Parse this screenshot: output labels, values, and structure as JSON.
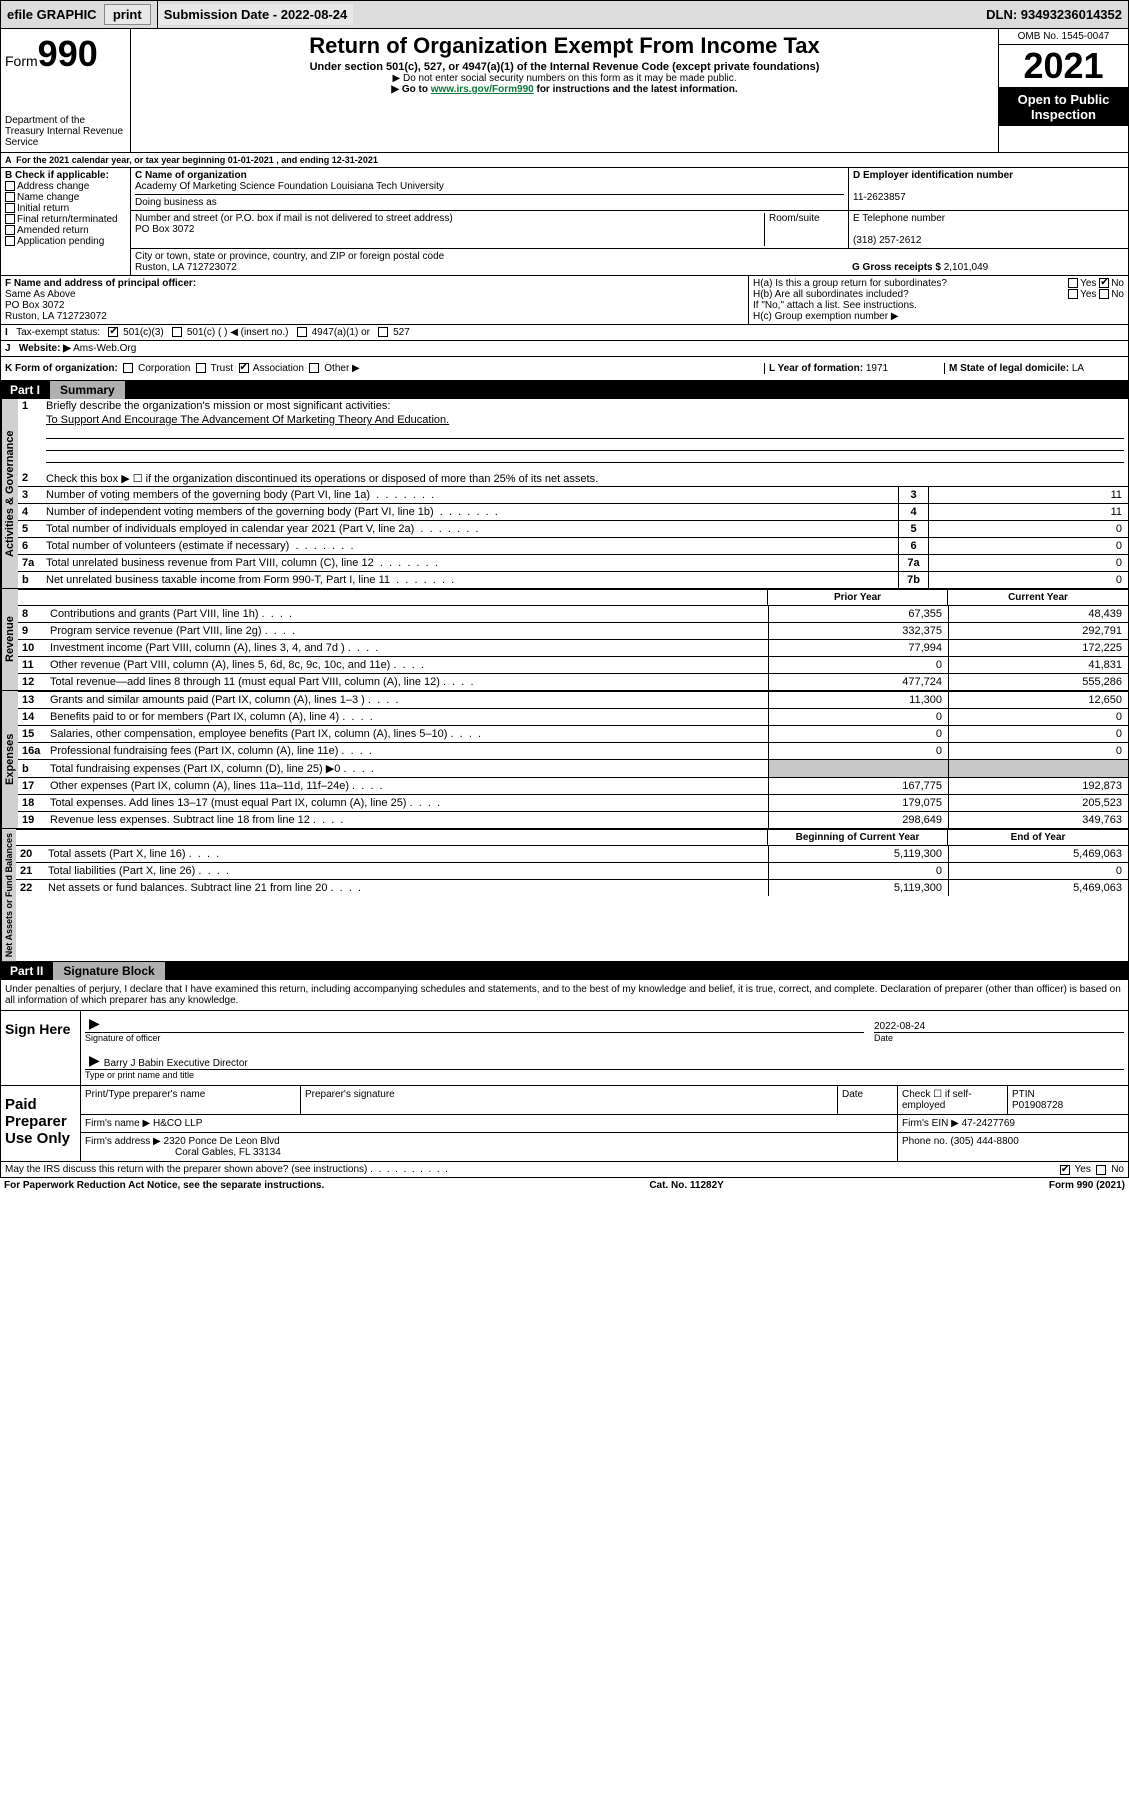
{
  "topbar": {
    "efile": "efile GRAPHIC",
    "print": "print",
    "subdate_lbl": "Submission Date - 2022-08-24",
    "dln": "DLN: 93493236014352"
  },
  "header": {
    "form_word": "Form",
    "form_num": "990",
    "title": "Return of Organization Exempt From Income Tax",
    "sub": "Under section 501(c), 527, or 4947(a)(1) of the Internal Revenue Code (except private foundations)",
    "note1": "▶ Do not enter social security numbers on this form as it may be made public.",
    "note2_pre": "▶ Go to ",
    "note2_link": "www.irs.gov/Form990",
    "note2_post": " for instructions and the latest information.",
    "dept": "Department of the Treasury Internal Revenue Service",
    "omb": "OMB No. 1545-0047",
    "year": "2021",
    "open": "Open to Public Inspection"
  },
  "A": {
    "text": "For the 2021 calendar year, or tax year beginning 01-01-2021    , and ending 12-31-2021"
  },
  "B": {
    "hdr": "B Check if applicable:",
    "items": [
      "Address change",
      "Name change",
      "Initial return",
      "Final return/terminated",
      "Amended return",
      "Application pending"
    ]
  },
  "C": {
    "name_lbl": "C Name of organization",
    "name": "Academy Of Marketing Science Foundation Louisiana Tech University",
    "dba_lbl": "Doing business as",
    "addr_lbl": "Number and street (or P.O. box if mail is not delivered to street address)",
    "room_lbl": "Room/suite",
    "addr": "PO Box 3072",
    "city_lbl": "City or town, state or province, country, and ZIP or foreign postal code",
    "city": "Ruston, LA  712723072"
  },
  "D": {
    "lbl": "D Employer identification number",
    "val": "11-2623857"
  },
  "E": {
    "lbl": "E Telephone number",
    "val": "(318) 257-2612"
  },
  "G": {
    "lbl": "G Gross receipts $",
    "val": "2,101,049"
  },
  "F": {
    "lbl": "F  Name and address of principal officer:",
    "l1": "Same As Above",
    "l2": "PO Box 3072",
    "l3": "Ruston, LA  712723072"
  },
  "H": {
    "a_lbl": "H(a)  Is this a group return for subordinates?",
    "b_lbl": "H(b)  Are all subordinates included?",
    "b_note": "If \"No,\" attach a list. See instructions.",
    "c_lbl": "H(c)  Group exemption number ▶"
  },
  "I": {
    "lbl": "Tax-exempt status:",
    "opts": [
      "501(c)(3)",
      "501(c) (   ) ◀ (insert no.)",
      "4947(a)(1) or",
      "527"
    ]
  },
  "J": {
    "lbl": "Website: ▶",
    "val": "Ams-Web.Org"
  },
  "K": {
    "lbl": "K Form of organization:",
    "opts": [
      "Corporation",
      "Trust",
      "Association",
      "Other ▶"
    ]
  },
  "L": {
    "lbl": "L Year of formation:",
    "val": "1971"
  },
  "M": {
    "lbl": "M State of legal domicile:",
    "val": "LA"
  },
  "part1": {
    "num": "Part I",
    "title": "Summary",
    "line1": "Briefly describe the organization's mission or most significant activities:",
    "mission": "To Support And Encourage The Advancement Of Marketing Theory And Education.",
    "line2": "Check this box ▶ ☐  if the organization discontinued its operations or disposed of more than 25% of its net assets.",
    "rows_top": [
      {
        "n": "3",
        "t": "Number of voting members of the governing body (Part VI, line 1a)",
        "box": "3",
        "v": "11"
      },
      {
        "n": "4",
        "t": "Number of independent voting members of the governing body (Part VI, line 1b)",
        "box": "4",
        "v": "11"
      },
      {
        "n": "5",
        "t": "Total number of individuals employed in calendar year 2021 (Part V, line 2a)",
        "box": "5",
        "v": "0"
      },
      {
        "n": "6",
        "t": "Total number of volunteers (estimate if necessary)",
        "box": "6",
        "v": "0"
      },
      {
        "n": "7a",
        "t": "Total unrelated business revenue from Part VIII, column (C), line 12",
        "box": "7a",
        "v": "0"
      },
      {
        "n": "b",
        "t": "Net unrelated business taxable income from Form 990-T, Part I, line 11",
        "box": "7b",
        "v": "0"
      }
    ],
    "col_hdr1": "Prior Year",
    "col_hdr2": "Current Year",
    "revenue": [
      {
        "n": "8",
        "t": "Contributions and grants (Part VIII, line 1h)",
        "c1": "67,355",
        "c2": "48,439"
      },
      {
        "n": "9",
        "t": "Program service revenue (Part VIII, line 2g)",
        "c1": "332,375",
        "c2": "292,791"
      },
      {
        "n": "10",
        "t": "Investment income (Part VIII, column (A), lines 3, 4, and 7d )",
        "c1": "77,994",
        "c2": "172,225"
      },
      {
        "n": "11",
        "t": "Other revenue (Part VIII, column (A), lines 5, 6d, 8c, 9c, 10c, and 11e)",
        "c1": "0",
        "c2": "41,831"
      },
      {
        "n": "12",
        "t": "Total revenue—add lines 8 through 11 (must equal Part VIII, column (A), line 12)",
        "c1": "477,724",
        "c2": "555,286"
      }
    ],
    "expenses": [
      {
        "n": "13",
        "t": "Grants and similar amounts paid (Part IX, column (A), lines 1–3 )",
        "c1": "11,300",
        "c2": "12,650"
      },
      {
        "n": "14",
        "t": "Benefits paid to or for members (Part IX, column (A), line 4)",
        "c1": "0",
        "c2": "0"
      },
      {
        "n": "15",
        "t": "Salaries, other compensation, employee benefits (Part IX, column (A), lines 5–10)",
        "c1": "0",
        "c2": "0"
      },
      {
        "n": "16a",
        "t": "Professional fundraising fees (Part IX, column (A), line 11e)",
        "c1": "0",
        "c2": "0"
      },
      {
        "n": "b",
        "t": "Total fundraising expenses (Part IX, column (D), line 25) ▶0",
        "c1": "",
        "c2": "",
        "shaded": true
      },
      {
        "n": "17",
        "t": "Other expenses (Part IX, column (A), lines 11a–11d, 11f–24e)",
        "c1": "167,775",
        "c2": "192,873"
      },
      {
        "n": "18",
        "t": "Total expenses. Add lines 13–17 (must equal Part IX, column (A), line 25)",
        "c1": "179,075",
        "c2": "205,523"
      },
      {
        "n": "19",
        "t": "Revenue less expenses. Subtract line 18 from line 12",
        "c1": "298,649",
        "c2": "349,763"
      }
    ],
    "bal_hdr1": "Beginning of Current Year",
    "bal_hdr2": "End of Year",
    "balances": [
      {
        "n": "20",
        "t": "Total assets (Part X, line 16)",
        "c1": "5,119,300",
        "c2": "5,469,063"
      },
      {
        "n": "21",
        "t": "Total liabilities (Part X, line 26)",
        "c1": "0",
        "c2": "0"
      },
      {
        "n": "22",
        "t": "Net assets or fund balances. Subtract line 21 from line 20",
        "c1": "5,119,300",
        "c2": "5,469,063"
      }
    ],
    "side_labels": {
      "gov": "Activities & Governance",
      "rev": "Revenue",
      "exp": "Expenses",
      "bal": "Net Assets or Fund Balances"
    }
  },
  "part2": {
    "num": "Part II",
    "title": "Signature Block",
    "decl": "Under penalties of perjury, I declare that I have examined this return, including accompanying schedules and statements, and to the best of my knowledge and belief, it is true, correct, and complete. Declaration of preparer (other than officer) is based on all information of which preparer has any knowledge.",
    "sign_here": "Sign Here",
    "sig_officer": "Signature of officer",
    "date_lbl": "Date",
    "date_val": "2022-08-24",
    "officer_name": "Barry J Babin  Executive Director",
    "type_name": "Type or print name and title",
    "paid": "Paid Preparer Use Only",
    "p_hdrs": [
      "Print/Type preparer's name",
      "Preparer's signature",
      "Date",
      "Check ☐ if self-employed",
      "PTIN"
    ],
    "ptin": "P01908728",
    "firm_name_lbl": "Firm's name     ▶",
    "firm_name": "H&CO LLP",
    "firm_ein_lbl": "Firm's EIN ▶",
    "firm_ein": "47-2427769",
    "firm_addr_lbl": "Firm's address ▶",
    "firm_addr1": "2320 Ponce De Leon Blvd",
    "firm_addr2": "Coral Gables, FL  33134",
    "phone_lbl": "Phone no.",
    "phone": "(305) 444-8800",
    "discuss": "May the IRS discuss this return with the preparer shown above? (see instructions)",
    "yes": "Yes",
    "no": "No"
  },
  "footer": {
    "left": "For Paperwork Reduction Act Notice, see the separate instructions.",
    "mid": "Cat. No. 11282Y",
    "right": "Form 990 (2021)"
  },
  "yesno": {
    "yes": "Yes",
    "no": "No"
  }
}
